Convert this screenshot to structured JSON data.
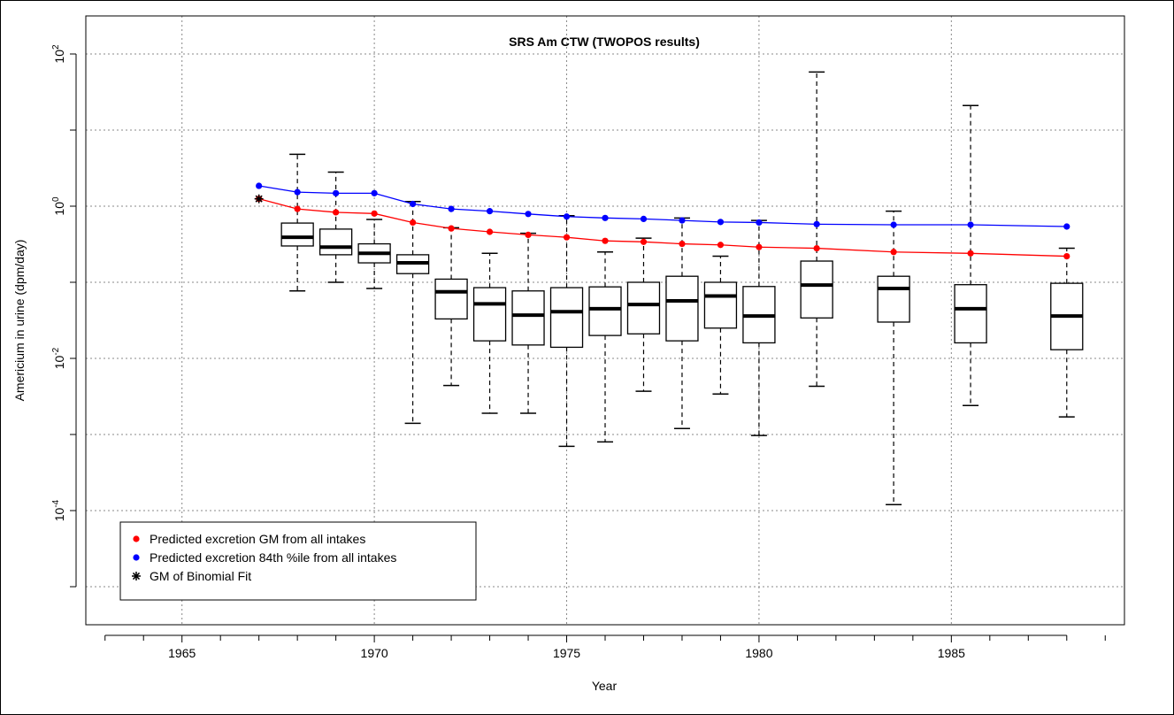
{
  "chart_data": {
    "type": "box",
    "title": "SRS Am CTW (TWOPOS results)",
    "xlabel": "Year",
    "ylabel": "Americium in urine (dpm/day)",
    "xlim": [
      1962.5,
      1989.5
    ],
    "ylim_log10": [
      -5.5,
      2.5
    ],
    "y_scale": "log",
    "x_ticks": [
      1965,
      1970,
      1975,
      1980,
      1985
    ],
    "y_ticks": [
      {
        "exp": 2,
        "base": "10",
        "sup": "2"
      },
      {
        "exp": 0,
        "base": "10",
        "sup": "0"
      },
      {
        "exp": -2,
        "base": "10",
        "sup": "-2"
      },
      {
        "exp": -4,
        "base": "10",
        "sup": "-4"
      }
    ],
    "grid": true,
    "legend_position": "bottom-left",
    "boxes": [
      {
        "x": 1968,
        "min": 0.077,
        "q1": 0.3,
        "median": 0.39,
        "q3": 0.6,
        "max": 4.8
      },
      {
        "x": 1969,
        "min": 0.1,
        "q1": 0.23,
        "median": 0.29,
        "q3": 0.5,
        "max": 2.8
      },
      {
        "x": 1970,
        "min": 0.083,
        "q1": 0.18,
        "median": 0.24,
        "q3": 0.32,
        "max": 0.67
      },
      {
        "x": 1971,
        "min": 0.0014,
        "q1": 0.13,
        "median": 0.18,
        "q3": 0.23,
        "max": 1.15
      },
      {
        "x": 1972,
        "min": 0.0044,
        "q1": 0.033,
        "median": 0.075,
        "q3": 0.11,
        "max": 0.52
      },
      {
        "x": 1973,
        "min": 0.0019,
        "q1": 0.017,
        "median": 0.052,
        "q3": 0.085,
        "max": 0.24
      },
      {
        "x": 1974,
        "min": 0.0019,
        "q1": 0.015,
        "median": 0.037,
        "q3": 0.077,
        "max": 0.44
      },
      {
        "x": 1975,
        "min": 0.0007,
        "q1": 0.014,
        "median": 0.041,
        "q3": 0.085,
        "max": 0.75
      },
      {
        "x": 1976,
        "min": 0.0008,
        "q1": 0.02,
        "median": 0.045,
        "q3": 0.087,
        "max": 0.25
      },
      {
        "x": 1977,
        "min": 0.0037,
        "q1": 0.021,
        "median": 0.051,
        "q3": 0.1,
        "max": 0.38
      },
      {
        "x": 1978,
        "min": 0.0012,
        "q1": 0.017,
        "median": 0.057,
        "q3": 0.12,
        "max": 0.7
      },
      {
        "x": 1979,
        "min": 0.0034,
        "q1": 0.025,
        "median": 0.066,
        "q3": 0.1,
        "max": 0.22
      },
      {
        "x": 1980,
        "min": 0.00097,
        "q1": 0.016,
        "median": 0.036,
        "q3": 0.088,
        "max": 0.65
      },
      {
        "x": 1981.5,
        "min": 0.0043,
        "q1": 0.034,
        "median": 0.092,
        "q3": 0.19,
        "max": 58
      },
      {
        "x": 1983.5,
        "min": 0.00012,
        "q1": 0.03,
        "median": 0.083,
        "q3": 0.12,
        "max": 0.86
      },
      {
        "x": 1985.5,
        "min": 0.0024,
        "q1": 0.016,
        "median": 0.045,
        "q3": 0.093,
        "max": 21
      },
      {
        "x": 1988,
        "min": 0.0017,
        "q1": 0.013,
        "median": 0.036,
        "q3": 0.097,
        "max": 0.28
      }
    ],
    "series": [
      {
        "name": "Predicted excretion GM from all intakes",
        "color": "#ff0000",
        "marker": "dot",
        "x": [
          1967,
          1968,
          1969,
          1970,
          1971,
          1972,
          1973,
          1974,
          1975,
          1976,
          1977,
          1978,
          1979,
          1980,
          1981.5,
          1983.5,
          1985.5,
          1988
        ],
        "y": [
          1.25,
          0.92,
          0.83,
          0.8,
          0.61,
          0.51,
          0.46,
          0.42,
          0.39,
          0.35,
          0.34,
          0.32,
          0.31,
          0.29,
          0.28,
          0.25,
          0.24,
          0.22
        ]
      },
      {
        "name": "Predicted excretion 84th %ile from all intakes",
        "color": "#0000ff",
        "marker": "dot",
        "x": [
          1967,
          1968,
          1969,
          1970,
          1971,
          1972,
          1973,
          1974,
          1975,
          1976,
          1977,
          1978,
          1979,
          1980,
          1981.5,
          1983.5,
          1985.5,
          1988
        ],
        "y": [
          1.85,
          1.53,
          1.48,
          1.48,
          1.07,
          0.92,
          0.86,
          0.79,
          0.73,
          0.7,
          0.68,
          0.65,
          0.62,
          0.61,
          0.58,
          0.57,
          0.57,
          0.54
        ]
      },
      {
        "name": "GM of Binomial Fit",
        "color": "#000000",
        "marker": "asterisk",
        "x": [
          1967
        ],
        "y": [
          1.25
        ]
      }
    ]
  }
}
